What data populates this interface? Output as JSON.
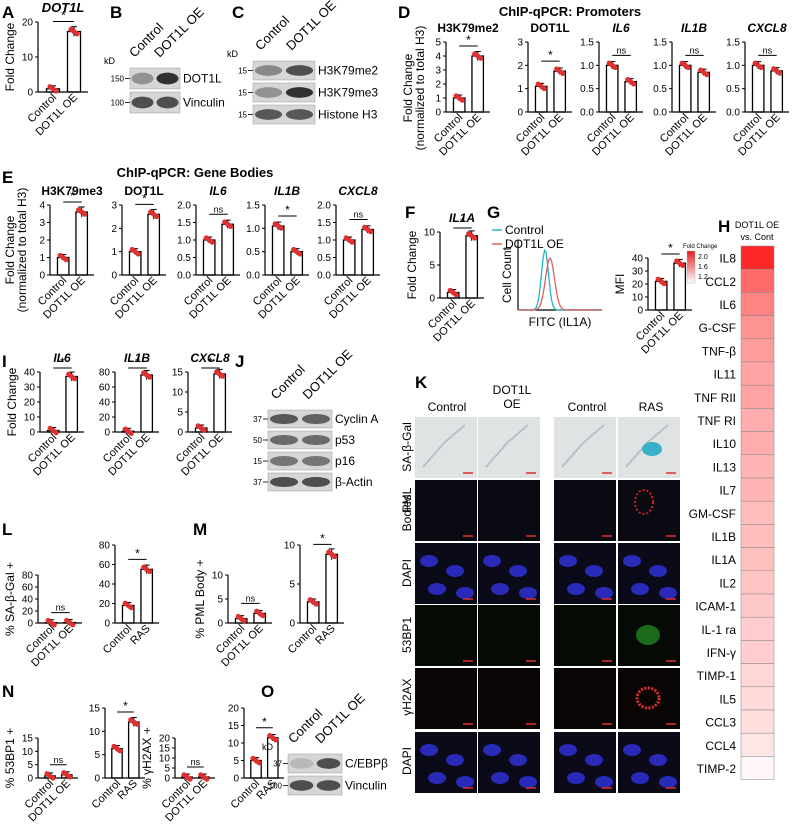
{
  "colors": {
    "bar": "#e03030",
    "dot": "#e03030",
    "line_control": "#25b5c8",
    "line_oe": "#e06060"
  },
  "panelA": {
    "letter": "A",
    "gene": "DOT1L",
    "ylabel": "Fold Change",
    "ticks": [
      "0",
      "10",
      "20"
    ],
    "cats": [
      "Control",
      "DOT1L OE"
    ],
    "values": [
      1,
      19
    ],
    "max": 22,
    "sig": "*"
  },
  "panelB": {
    "letter": "B",
    "cols": [
      "Control",
      "DOT1L OE"
    ],
    "kd": "kD",
    "mw": [
      "150",
      "100"
    ],
    "bands": [
      "DOT1L",
      "Vinculin"
    ]
  },
  "panelC": {
    "letter": "C",
    "cols": [
      "Control",
      "DOT1L OE"
    ],
    "kd": "kD",
    "mw": [
      "15",
      "15",
      "15"
    ],
    "bands": [
      "H3K79me2",
      "H3K79me3",
      "Histone H3"
    ]
  },
  "panelD": {
    "letter": "D",
    "title": "ChIP-qPCR: Promoters",
    "ylabel1": "Fold Change",
    "ylabel2": "(normalized to total H3)",
    "cats": [
      "Control",
      "DOT1L OE"
    ],
    "plots": [
      {
        "name": "H3K79me2",
        "italic": false,
        "ticks": [
          "0",
          "1",
          "2",
          "3",
          "4",
          "5"
        ],
        "max": 5,
        "values": [
          1,
          4
        ],
        "sig": "*"
      },
      {
        "name": "DOT1L",
        "italic": false,
        "ticks": [
          "0",
          "1",
          "2",
          "3"
        ],
        "max": 3,
        "values": [
          1.1,
          1.75
        ],
        "sig": "*"
      },
      {
        "name": "IL6",
        "italic": true,
        "ticks": [
          "0.0",
          "0.5",
          "1.0",
          "1.5"
        ],
        "max": 1.5,
        "values": [
          1.0,
          0.65
        ],
        "sig": "ns"
      },
      {
        "name": "IL1B",
        "italic": true,
        "ticks": [
          "0.0",
          "0.5",
          "1.0",
          "1.5"
        ],
        "max": 1.5,
        "values": [
          1.0,
          0.85
        ],
        "sig": "ns"
      },
      {
        "name": "CXCL8",
        "italic": true,
        "ticks": [
          "0.0",
          "0.5",
          "1.0",
          "1.5"
        ],
        "max": 1.5,
        "values": [
          1.0,
          0.88
        ],
        "sig": "ns"
      }
    ]
  },
  "panelE": {
    "letter": "E",
    "title": "ChIP-qPCR: Gene Bodies",
    "ylabel1": "Fold Change",
    "ylabel2": "(normalized to total H3)",
    "cats": [
      "Control",
      "DOT1L OE"
    ],
    "plots": [
      {
        "name": "H3K79me3",
        "italic": false,
        "ticks": [
          "0",
          "1",
          "2",
          "3",
          "4"
        ],
        "max": 4,
        "values": [
          1,
          3.6
        ],
        "sig": "*"
      },
      {
        "name": "DOT1L",
        "italic": false,
        "ticks": [
          "0",
          "1",
          "2",
          "3"
        ],
        "max": 3,
        "values": [
          1,
          2.6
        ],
        "sig": "*"
      },
      {
        "name": "IL6",
        "italic": true,
        "ticks": [
          "0.0",
          "0.5",
          "1.0",
          "1.5",
          "2.0"
        ],
        "max": 2,
        "values": [
          1.0,
          1.45
        ],
        "sig": "ns"
      },
      {
        "name": "IL1B",
        "italic": true,
        "ticks": [
          "0.0",
          "0.5",
          "1.0",
          "1.5"
        ],
        "max": 1.5,
        "values": [
          1.05,
          0.5
        ],
        "sig": "*"
      },
      {
        "name": "CXCL8",
        "italic": true,
        "ticks": [
          "0.0",
          "0.5",
          "1.0",
          "1.5",
          "2.0"
        ],
        "max": 2,
        "values": [
          1.0,
          1.3
        ],
        "sig": "ns"
      }
    ]
  },
  "panelF": {
    "letter": "F",
    "gene": "IL1A",
    "ylabel": "Fold Change",
    "ticks": [
      "0",
      "5",
      "10"
    ],
    "max": 12,
    "cats": [
      "Control",
      "DOT1L OE"
    ],
    "values": [
      1,
      11.3
    ],
    "sig": "*"
  },
  "panelG": {
    "letter": "G",
    "legend": [
      "Control",
      "DOT1L OE"
    ],
    "ylabel": "Cell Count",
    "xlabel": "FITC (IL1A)",
    "mfi_label": "MFI",
    "ticks": [
      "0",
      "10",
      "20",
      "30",
      "40"
    ],
    "max": 40,
    "cats": [
      "Control",
      "DOT1L OE"
    ],
    "values": [
      22,
      36
    ],
    "sig": "*"
  },
  "panelH": {
    "letter": "H",
    "header1": "DOT1L OE",
    "header2": "vs. Cont",
    "scale_title": "Fold Change",
    "scale_ticks": [
      "2.0",
      "1.6",
      "1.2"
    ],
    "rows": [
      {
        "name": "IL8",
        "v": 2.3
      },
      {
        "name": "CCL2",
        "v": 1.9
      },
      {
        "name": "IL6",
        "v": 1.75
      },
      {
        "name": "G-CSF",
        "v": 1.65
      },
      {
        "name": "TNF-β",
        "v": 1.6
      },
      {
        "name": "IL11",
        "v": 1.55
      },
      {
        "name": "TNF RII",
        "v": 1.55
      },
      {
        "name": "TNF RI",
        "v": 1.5
      },
      {
        "name": "IL10",
        "v": 1.5
      },
      {
        "name": "IL13",
        "v": 1.45
      },
      {
        "name": "IL7",
        "v": 1.45
      },
      {
        "name": "GM-CSF",
        "v": 1.4
      },
      {
        "name": "IL1B",
        "v": 1.4
      },
      {
        "name": "IL1A",
        "v": 1.38
      },
      {
        "name": "IL2",
        "v": 1.35
      },
      {
        "name": "ICAM-1",
        "v": 1.33
      },
      {
        "name": "IL-1 ra",
        "v": 1.3
      },
      {
        "name": "IFN-γ",
        "v": 1.3
      },
      {
        "name": "TIMP-1",
        "v": 1.25
      },
      {
        "name": "IL5",
        "v": 1.22
      },
      {
        "name": "CCL3",
        "v": 1.2
      },
      {
        "name": "CCL4",
        "v": 1.15
      },
      {
        "name": "TIMP-2",
        "v": 1.05
      }
    ]
  },
  "panelI": {
    "letter": "I",
    "ylabel": "Fold Change",
    "cats": [
      "Control",
      "DOT1L OE"
    ],
    "plots": [
      {
        "name": "IL6",
        "ticks": [
          "0",
          "10",
          "20",
          "30",
          "40"
        ],
        "max": 40,
        "values": [
          1,
          37
        ],
        "sig": "*"
      },
      {
        "name": "IL1B",
        "ticks": [
          "0",
          "20",
          "40",
          "60",
          "80"
        ],
        "max": 80,
        "values": [
          1,
          76
        ],
        "sig": "*"
      },
      {
        "name": "CXCL8",
        "ticks": [
          "0",
          "5",
          "10",
          "15"
        ],
        "max": 15,
        "values": [
          1,
          14.5
        ],
        "sig": "*"
      }
    ]
  },
  "panelJ": {
    "letter": "J",
    "cols": [
      "Control",
      "DOT1L OE"
    ],
    "mw": [
      "37",
      "50",
      "15",
      "37"
    ],
    "bands": [
      "Cyclin A",
      "p53",
      "p16",
      "β-Actin"
    ]
  },
  "panelK": {
    "letter": "K",
    "cols": [
      "Control",
      "DOT1L",
      "OE",
      "Control",
      "RAS"
    ],
    "rows": [
      "SA-β-Gal",
      "PML",
      "Bodies",
      "DAPI",
      "53BP1",
      "γH2AX",
      "DAPI"
    ]
  },
  "panelL": {
    "letter": "L",
    "ylabel": "% SA-β-Gal +",
    "plots": [
      {
        "cats": [
          "Control",
          "DOT1L OE"
        ],
        "ticks": [
          "0",
          "20",
          "40",
          "60",
          "80"
        ],
        "max": 80,
        "values": [
          0.5,
          0.7
        ],
        "sig": "ns"
      },
      {
        "cats": [
          "Control",
          "RAS"
        ],
        "ticks": [
          "0",
          "20",
          "40",
          "60",
          "80"
        ],
        "max": 80,
        "values": [
          18,
          55
        ],
        "sig": "*"
      }
    ]
  },
  "panelM": {
    "letter": "M",
    "ylabel": "% PML Body +",
    "plots": [
      {
        "cats": [
          "Control",
          "DOT1L OE"
        ],
        "ticks": [
          "0",
          "5",
          "10"
        ],
        "max": 10,
        "values": [
          0.9,
          2.0
        ],
        "sig": "ns"
      },
      {
        "cats": [
          "Control",
          "RAS"
        ],
        "ticks": [
          "0",
          "5",
          "10"
        ],
        "max": 10,
        "values": [
          2.7,
          8.8
        ],
        "sig": "*"
      }
    ]
  },
  "panelN": {
    "letter": "N",
    "plots": [
      {
        "ylabel": "% 53BP1 +",
        "cats": [
          "Control",
          "DOT1L OE"
        ],
        "ticks": [
          "0",
          "5",
          "10",
          "15"
        ],
        "max": 15,
        "values": [
          0.8,
          1.2
        ],
        "sig": "ns"
      },
      {
        "ylabel": "",
        "cats": [
          "Control",
          "RAS"
        ],
        "ticks": [
          "0",
          "5",
          "10",
          "15"
        ],
        "max": 15,
        "values": [
          6.3,
          12
        ],
        "sig": "*"
      },
      {
        "ylabel": "% γH2AX +",
        "cats": [
          "Control",
          "DOT1L OE"
        ],
        "ticks": [
          "0",
          "5",
          "10",
          "15",
          "20"
        ],
        "max": 20,
        "values": [
          0.5,
          0.5
        ],
        "sig": "ns"
      },
      {
        "ylabel": "",
        "cats": [
          "Control",
          "RAS"
        ],
        "ticks": [
          "0",
          "5",
          "10",
          "15",
          "20"
        ],
        "max": 20,
        "values": [
          5,
          11.5
        ],
        "sig": "*"
      }
    ]
  },
  "panelO": {
    "letter": "O",
    "cols": [
      "Control",
      "DOT1L OE"
    ],
    "kd": "kD",
    "mw": [
      "37",
      "100"
    ],
    "bands": [
      "C/EBPβ",
      "Vinculin"
    ]
  }
}
